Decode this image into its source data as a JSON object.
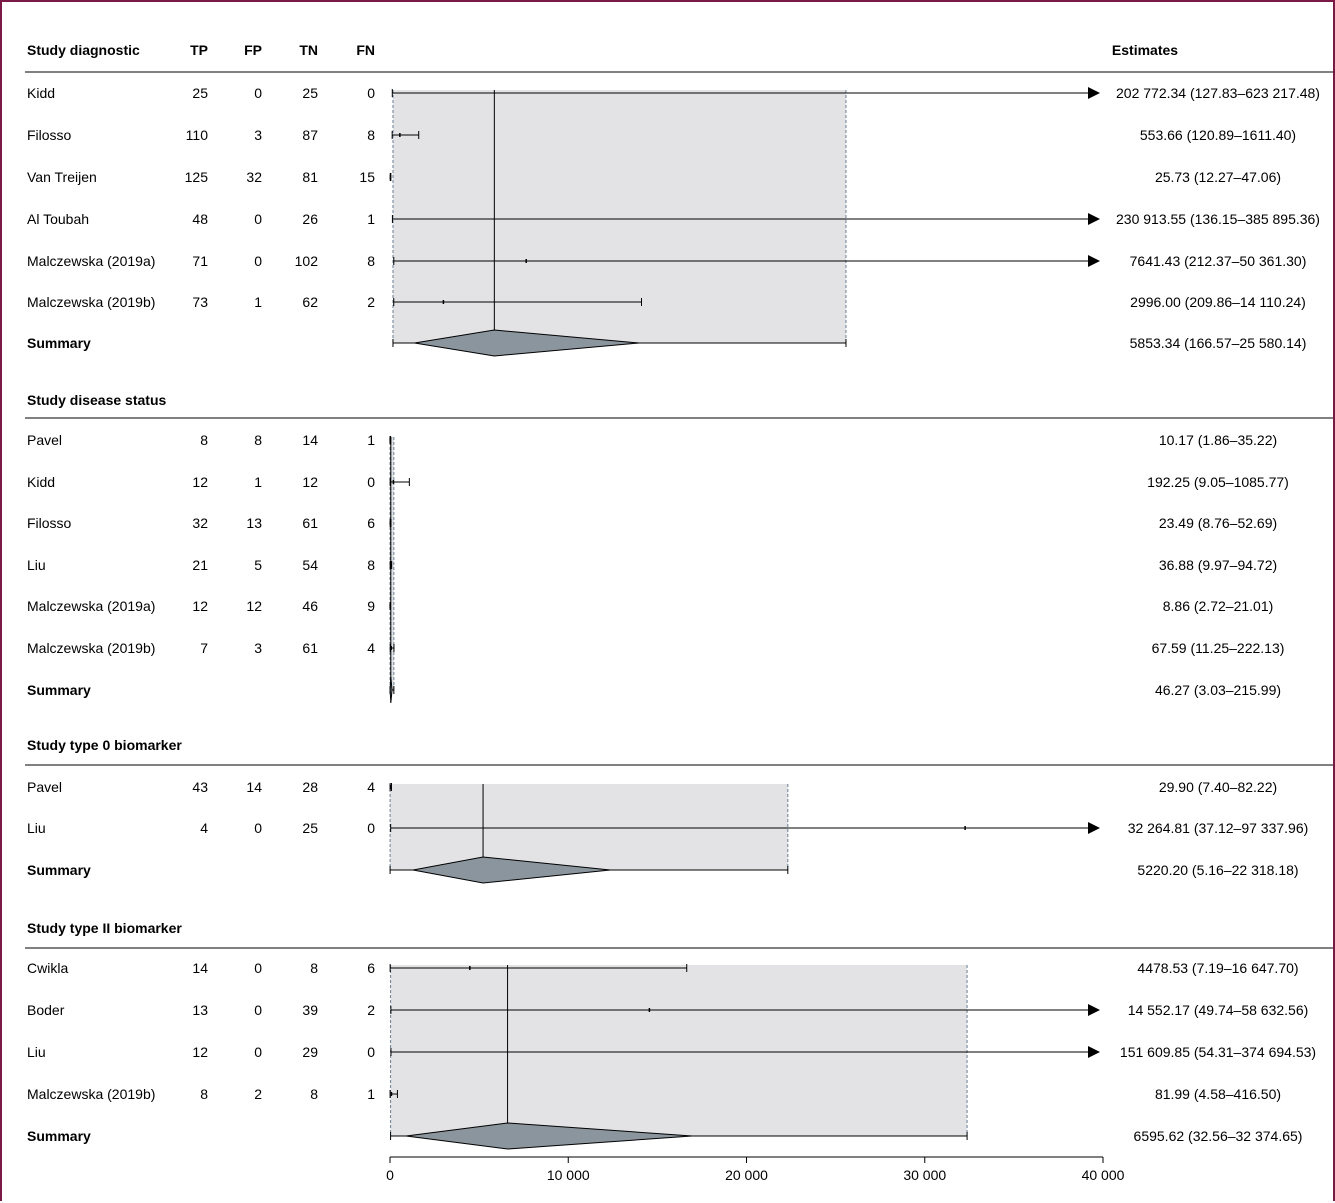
{
  "chart_data": {
    "type": "forest",
    "columns": [
      "Study diagnostic",
      "TP",
      "FP",
      "TN",
      "FN"
    ],
    "estimates_header": "Estimates",
    "x_ticks": [
      "0",
      "10 000",
      "20 000",
      "30 000",
      "40 000"
    ],
    "xlim": [
      0,
      40000
    ],
    "groups": [
      {
        "title": "Study diagnostic",
        "rows": [
          {
            "study": "Kidd",
            "tp": "25",
            "fp": "0",
            "tn": "25",
            "fn": "0",
            "point": 202772.34,
            "lower": 127.83,
            "upper": 623217.48,
            "label": "202 772.34 (127.83–623 217.48)"
          },
          {
            "study": "Filosso",
            "tp": "110",
            "fp": "3",
            "tn": "87",
            "fn": "8",
            "point": 553.66,
            "lower": 120.89,
            "upper": 1611.4,
            "label": "553.66 (120.89–1611.40)"
          },
          {
            "study": "Van Treijen",
            "tp": "125",
            "fp": "32",
            "tn": "81",
            "fn": "15",
            "point": 25.73,
            "lower": 12.27,
            "upper": 47.06,
            "label": "25.73 (12.27–47.06)"
          },
          {
            "study": "Al Toubah",
            "tp": "48",
            "fp": "0",
            "tn": "26",
            "fn": "1",
            "point": 230913.55,
            "lower": 136.15,
            "upper": 385895.36,
            "label": "230 913.55 (136.15–385 895.36)"
          },
          {
            "study": "Malczewska (2019a)",
            "tp": "71",
            "fp": "0",
            "tn": "102",
            "fn": "8",
            "point": 7641.43,
            "lower": 212.37,
            "upper": 50361.3,
            "label": "7641.43 (212.37–50 361.30)"
          },
          {
            "study": "Malczewska (2019b)",
            "tp": "73",
            "fp": "1",
            "tn": "62",
            "fn": "2",
            "point": 2996.0,
            "lower": 209.86,
            "upper": 14110.24,
            "label": "2996.00 (209.86–14 110.24)"
          }
        ],
        "summary": {
          "label_text": "Summary",
          "point": 5853.34,
          "lower": 166.57,
          "upper": 25580.14,
          "label": "5853.34 (166.57–25 580.14)"
        }
      },
      {
        "title": "Study disease status",
        "rows": [
          {
            "study": "Pavel",
            "tp": "8",
            "fp": "8",
            "tn": "14",
            "fn": "1",
            "point": 10.17,
            "lower": 1.86,
            "upper": 35.22,
            "label": "10.17 (1.86–35.22)"
          },
          {
            "study": "Kidd",
            "tp": "12",
            "fp": "1",
            "tn": "12",
            "fn": "0",
            "point": 192.25,
            "lower": 9.05,
            "upper": 1085.77,
            "label": "192.25 (9.05–1085.77)"
          },
          {
            "study": "Filosso",
            "tp": "32",
            "fp": "13",
            "tn": "61",
            "fn": "6",
            "point": 23.49,
            "lower": 8.76,
            "upper": 52.69,
            "label": "23.49 (8.76–52.69)"
          },
          {
            "study": "Liu",
            "tp": "21",
            "fp": "5",
            "tn": "54",
            "fn": "8",
            "point": 36.88,
            "lower": 9.97,
            "upper": 94.72,
            "label": "36.88 (9.97–94.72)"
          },
          {
            "study": "Malczewska (2019a)",
            "tp": "12",
            "fp": "12",
            "tn": "46",
            "fn": "9",
            "point": 8.86,
            "lower": 2.72,
            "upper": 21.01,
            "label": "8.86 (2.72–21.01)"
          },
          {
            "study": "Malczewska (2019b)",
            "tp": "7",
            "fp": "3",
            "tn": "61",
            "fn": "4",
            "point": 67.59,
            "lower": 11.25,
            "upper": 222.13,
            "label": "67.59 (11.25–222.13)"
          }
        ],
        "summary": {
          "label_text": "Summary",
          "point": 46.27,
          "lower": 3.03,
          "upper": 215.99,
          "label": "46.27 (3.03–215.99)"
        }
      },
      {
        "title": "Study type 0 biomarker",
        "rows": [
          {
            "study": "Pavel",
            "tp": "43",
            "fp": "14",
            "tn": "28",
            "fn": "4",
            "point": 29.9,
            "lower": 7.4,
            "upper": 82.22,
            "label": "29.90 (7.40–82.22)"
          },
          {
            "study": "Liu",
            "tp": "4",
            "fp": "0",
            "tn": "25",
            "fn": "0",
            "point": 32264.81,
            "lower": 37.12,
            "upper": 97337.96,
            "label": "32 264.81 (37.12–97 337.96)"
          }
        ],
        "summary": {
          "label_text": "Summary",
          "point": 5220.2,
          "lower": 5.16,
          "upper": 22318.18,
          "label": "5220.20 (5.16–22 318.18)"
        }
      },
      {
        "title": "Study type II biomarker",
        "rows": [
          {
            "study": "Cwikla",
            "tp": "14",
            "fp": "0",
            "tn": "8",
            "fn": "6",
            "point": 4478.53,
            "lower": 7.19,
            "upper": 16647.7,
            "label": "4478.53 (7.19–16 647.70)"
          },
          {
            "study": "Boder",
            "tp": "13",
            "fp": "0",
            "tn": "39",
            "fn": "2",
            "point": 14552.17,
            "lower": 49.74,
            "upper": 58632.56,
            "label": "14 552.17 (49.74–58 632.56)"
          },
          {
            "study": "Liu",
            "tp": "12",
            "fp": "0",
            "tn": "29",
            "fn": "0",
            "point": 151609.85,
            "lower": 54.31,
            "upper": 374694.53,
            "label": "151 609.85 (54.31–374 694.53)"
          },
          {
            "study": "Malczewska (2019b)",
            "tp": "8",
            "fp": "2",
            "tn": "8",
            "fn": "1",
            "point": 81.99,
            "lower": 4.58,
            "upper": 416.5,
            "label": "81.99 (4.58–416.50)"
          }
        ],
        "summary": {
          "label_text": "Summary",
          "point": 6595.62,
          "lower": 32.56,
          "upper": 32374.65,
          "label": "6595.62 (32.56–32 374.65)"
        }
      }
    ],
    "colors": {
      "frame": "#7a1846",
      "band": "#e3e3e5",
      "diamond": "#8a959e"
    }
  }
}
